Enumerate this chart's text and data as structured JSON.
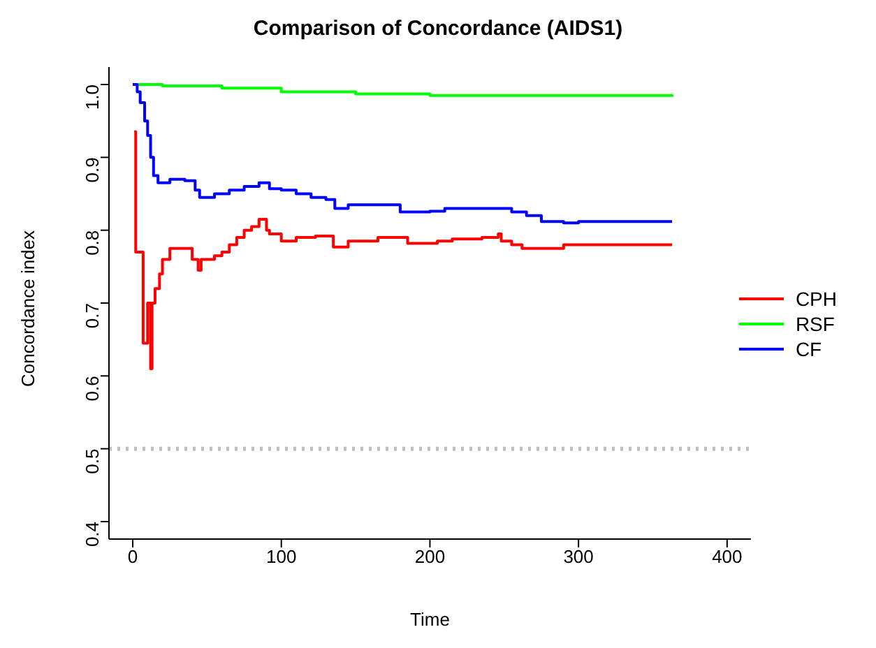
{
  "chart_data": {
    "type": "step",
    "title": "Comparison of Concordance (AIDS1)",
    "xlabel": "Time",
    "ylabel": "Concordance index",
    "xlim": [
      -16,
      416
    ],
    "xticks": [
      0,
      100,
      200,
      300,
      400
    ],
    "ylim": [
      0.376,
      1.024
    ],
    "yticks": [
      0.4,
      0.5,
      0.6,
      0.7,
      0.8,
      0.9,
      {
        "value": 1,
        "label": "1.0"
      }
    ],
    "grid": false,
    "legend": "right",
    "marker": "none",
    "line_style": "solid",
    "ref_lines": [
      {
        "axis": "y",
        "value": 0.5,
        "color": "#bebebe",
        "line_style": "dotted"
      }
    ],
    "series": [
      {
        "name": "CPH",
        "color": "#ff0000",
        "x": [
          1,
          2,
          7,
          10,
          12,
          13,
          15,
          18,
          20,
          25,
          35,
          40,
          44,
          46,
          55,
          60,
          65,
          70,
          75,
          80,
          85,
          90,
          92,
          100,
          110,
          123,
          135,
          145,
          165,
          185,
          205,
          215,
          235,
          246,
          248,
          255,
          262,
          290,
          363
        ],
        "values": [
          0.935,
          0.77,
          0.645,
          0.7,
          0.61,
          0.7,
          0.72,
          0.74,
          0.76,
          0.775,
          0.775,
          0.76,
          0.745,
          0.76,
          0.765,
          0.77,
          0.78,
          0.79,
          0.8,
          0.805,
          0.815,
          0.8,
          0.795,
          0.785,
          0.79,
          0.792,
          0.777,
          0.785,
          0.79,
          0.782,
          0.785,
          0.788,
          0.79,
          0.795,
          0.785,
          0.78,
          0.775,
          0.78,
          0.78
        ]
      },
      {
        "name": "RSF",
        "color": "#00ff00",
        "x": [
          0,
          20,
          60,
          100,
          150,
          200,
          363
        ],
        "values": [
          1.0,
          0.998,
          0.995,
          0.99,
          0.987,
          0.985,
          0.983
        ]
      },
      {
        "name": "CF",
        "color": "#0000ff",
        "x": [
          0,
          3,
          5,
          8,
          10,
          12,
          14,
          17,
          25,
          35,
          42,
          45,
          55,
          65,
          75,
          85,
          92,
          100,
          110,
          120,
          130,
          136,
          145,
          165,
          180,
          200,
          210,
          245,
          255,
          265,
          275,
          290,
          300,
          363
        ],
        "values": [
          1.0,
          0.99,
          0.975,
          0.95,
          0.93,
          0.9,
          0.875,
          0.865,
          0.87,
          0.868,
          0.855,
          0.845,
          0.85,
          0.855,
          0.86,
          0.865,
          0.857,
          0.855,
          0.85,
          0.845,
          0.842,
          0.83,
          0.835,
          0.835,
          0.825,
          0.826,
          0.83,
          0.83,
          0.825,
          0.82,
          0.812,
          0.81,
          0.812,
          0.812
        ]
      }
    ]
  }
}
